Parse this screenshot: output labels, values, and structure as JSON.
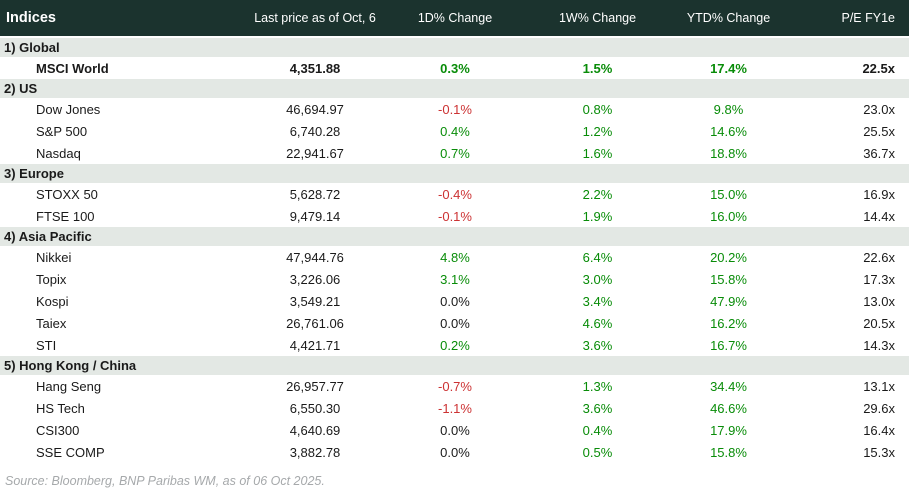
{
  "colors": {
    "header_bg": "#1b332e",
    "section_bg": "#e3e8e4",
    "text": "#1a1a1a",
    "up": "#088c08",
    "down": "#cc3233",
    "muted": "#a6a9ab"
  },
  "table": {
    "columns": [
      "Indices",
      "Last price as of Oct, 6",
      "1D% Change",
      "1W% Change",
      "YTD% Change",
      "P/E FY1e"
    ],
    "sections": [
      {
        "label": "1) Global",
        "rows": [
          {
            "name": "MSCI World",
            "price": "4,351.88",
            "d1": "0.3%",
            "w1": "1.5%",
            "ytd": "17.4%",
            "pe": "22.5x",
            "bold": true
          }
        ]
      },
      {
        "label": "2) US",
        "rows": [
          {
            "name": "Dow Jones",
            "price": "46,694.97",
            "d1": "-0.1%",
            "w1": "0.8%",
            "ytd": "9.8%",
            "pe": "23.0x"
          },
          {
            "name": "S&P 500",
            "price": "6,740.28",
            "d1": "0.4%",
            "w1": "1.2%",
            "ytd": "14.6%",
            "pe": "25.5x"
          },
          {
            "name": "Nasdaq",
            "price": "22,941.67",
            "d1": "0.7%",
            "w1": "1.6%",
            "ytd": "18.8%",
            "pe": "36.7x"
          }
        ]
      },
      {
        "label": "3) Europe",
        "rows": [
          {
            "name": "STOXX 50",
            "price": "5,628.72",
            "d1": "-0.4%",
            "w1": "2.2%",
            "ytd": "15.0%",
            "pe": "16.9x"
          },
          {
            "name": "FTSE 100",
            "price": "9,479.14",
            "d1": "-0.1%",
            "w1": "1.9%",
            "ytd": "16.0%",
            "pe": "14.4x"
          }
        ]
      },
      {
        "label": "4) Asia Pacific",
        "rows": [
          {
            "name": "Nikkei",
            "price": "47,944.76",
            "d1": "4.8%",
            "w1": "6.4%",
            "ytd": "20.2%",
            "pe": "22.6x"
          },
          {
            "name": "Topix",
            "price": "3,226.06",
            "d1": "3.1%",
            "w1": "3.0%",
            "ytd": "15.8%",
            "pe": "17.3x"
          },
          {
            "name": "Kospi",
            "price": "3,549.21",
            "d1": "0.0%",
            "w1": "3.4%",
            "ytd": "47.9%",
            "pe": "13.0x"
          },
          {
            "name": "Taiex",
            "price": "26,761.06",
            "d1": "0.0%",
            "w1": "4.6%",
            "ytd": "16.2%",
            "pe": "20.5x"
          },
          {
            "name": "STI",
            "price": "4,421.71",
            "d1": "0.2%",
            "w1": "3.6%",
            "ytd": "16.7%",
            "pe": "14.3x"
          }
        ]
      },
      {
        "label": "5) Hong Kong / China",
        "rows": [
          {
            "name": "Hang Seng",
            "price": "26,957.77",
            "d1": "-0.7%",
            "w1": "1.3%",
            "ytd": "34.4%",
            "pe": "13.1x"
          },
          {
            "name": "HS Tech",
            "price": "6,550.30",
            "d1": "-1.1%",
            "w1": "3.6%",
            "ytd": "46.6%",
            "pe": "29.6x"
          },
          {
            "name": "CSI300",
            "price": "4,640.69",
            "d1": "0.0%",
            "w1": "0.4%",
            "ytd": "17.9%",
            "pe": "16.4x"
          },
          {
            "name": "SSE COMP",
            "price": "3,882.78",
            "d1": "0.0%",
            "w1": "0.5%",
            "ytd": "15.8%",
            "pe": "15.3x"
          }
        ]
      }
    ]
  },
  "footer": {
    "source": "Source: Bloomberg, BNP Paribas WM, as of 06 Oct 2025."
  }
}
